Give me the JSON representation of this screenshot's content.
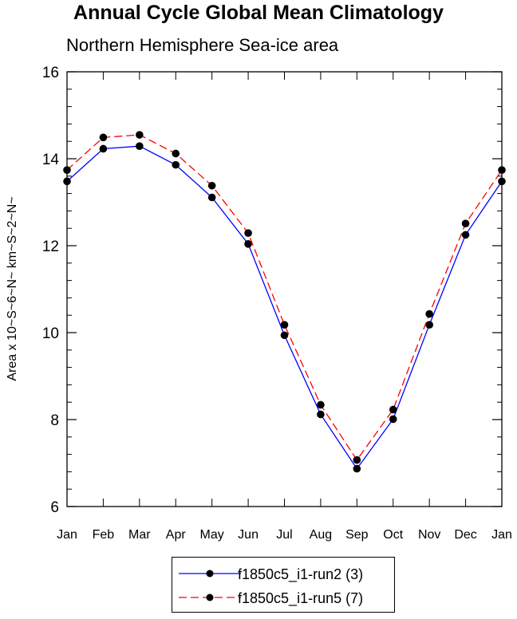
{
  "title": "Annual Cycle Global Mean Climatology",
  "subtitle": "Northern Hemisphere Sea-ice area",
  "chart_data": {
    "type": "line",
    "ylabel": "Area x 10~S~6~N~ km~S~2~N~",
    "xlabel": "",
    "categories": [
      "Jan",
      "Feb",
      "Mar",
      "Apr",
      "May",
      "Jun",
      "Jul",
      "Aug",
      "Sep",
      "Oct",
      "Nov",
      "Dec",
      "Jan"
    ],
    "ylim": [
      6,
      16
    ],
    "yticks": [
      6,
      8,
      10,
      12,
      14,
      16
    ],
    "legend_position": "bottom",
    "series": [
      {
        "name": "f1850c5_i1-run2 (3)",
        "color": "#0000ff",
        "dash": "solid",
        "marker": "filled-circle",
        "values": [
          13.48,
          14.23,
          14.29,
          13.86,
          13.11,
          12.04,
          9.94,
          8.12,
          6.87,
          8.01,
          10.18,
          12.25,
          13.48
        ]
      },
      {
        "name": "f1850c5_i1-run5 (7)",
        "color": "#ff0000",
        "dash": "dashed",
        "marker": "filled-circle",
        "values": [
          13.74,
          14.49,
          14.55,
          14.12,
          13.38,
          12.29,
          10.18,
          8.34,
          7.07,
          8.23,
          10.43,
          12.51,
          13.74
        ]
      }
    ]
  }
}
